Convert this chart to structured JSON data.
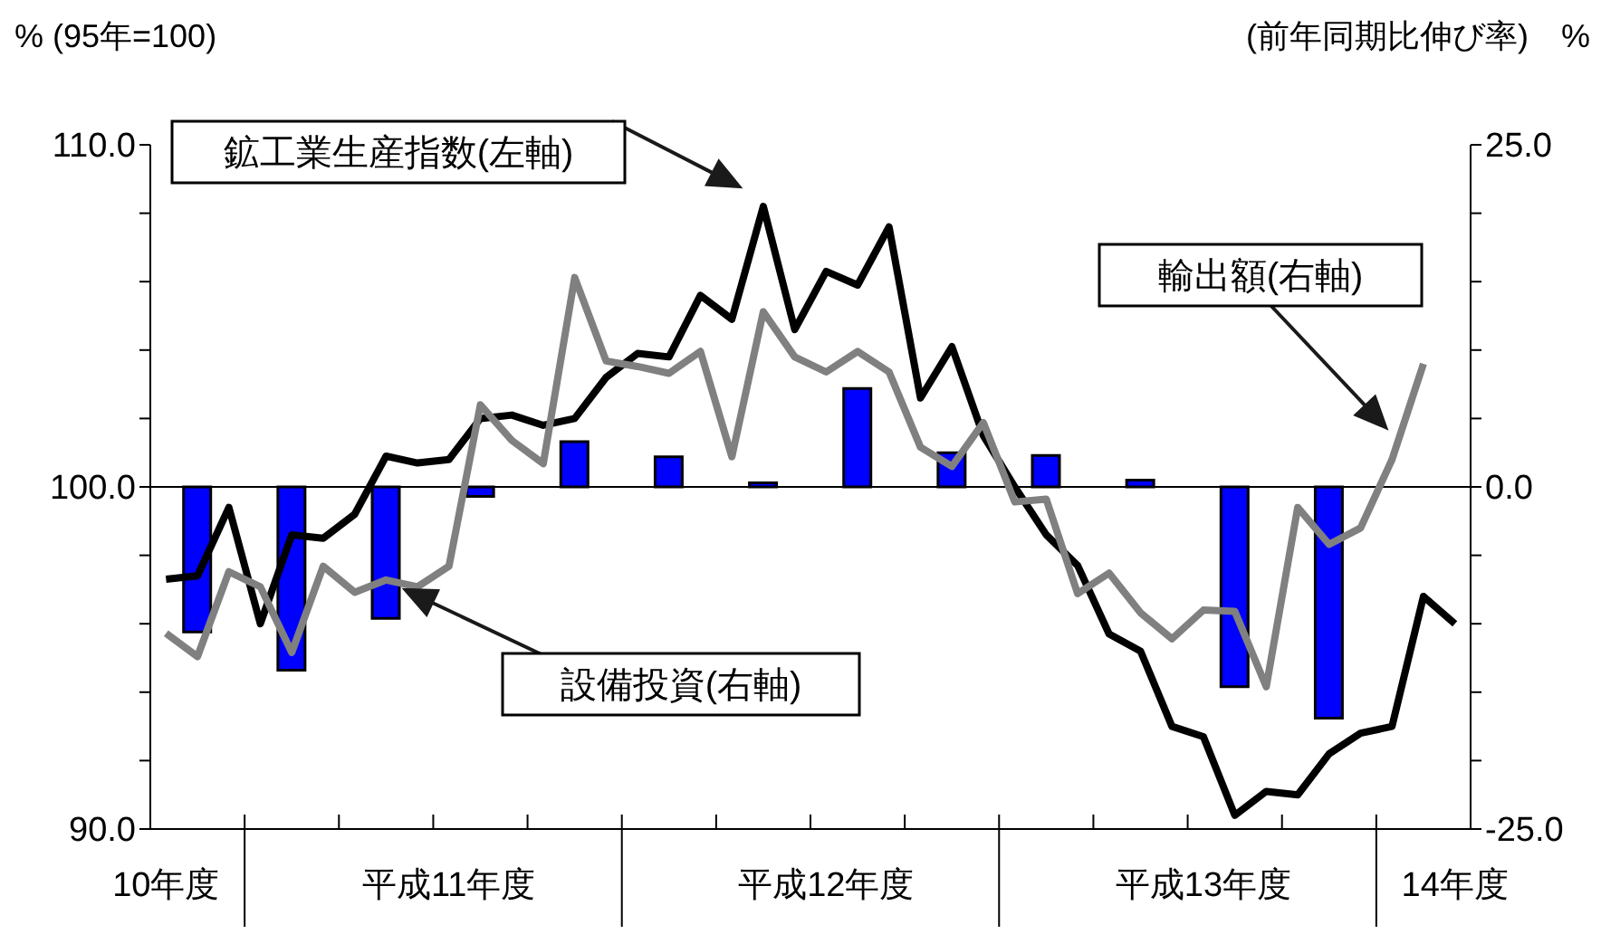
{
  "chart_data": {
    "type": "bar",
    "ylabel": "% (95年=100)",
    "y2label": "(前年同期比伸び率)　%",
    "legend": false,
    "marker": "none",
    "line_style": "solid",
    "categories": [
      "10年度",
      null,
      null,
      null,
      null,
      null,
      null,
      null,
      null,
      "平成11年度",
      null,
      null,
      null,
      null,
      null,
      null,
      null,
      null,
      null,
      null,
      null,
      "平成12年度",
      null,
      null,
      null,
      null,
      null,
      null,
      null,
      null,
      null,
      null,
      null,
      "平成13年度",
      null,
      null,
      null,
      null,
      null,
      null,
      null,
      "14年度"
    ],
    "ylim": [
      90,
      110
    ],
    "yticks": [
      {
        "value": 90,
        "label": "90.0"
      },
      {
        "value": 92,
        "label": null
      },
      {
        "value": 94,
        "label": null
      },
      {
        "value": 96,
        "label": null
      },
      {
        "value": 98,
        "label": null
      },
      {
        "value": 100,
        "label": "100.0"
      },
      {
        "value": 102,
        "label": null
      },
      {
        "value": 104,
        "label": null
      },
      {
        "value": 106,
        "label": null
      },
      {
        "value": 108,
        "label": null
      },
      {
        "value": 110,
        "label": "110.0"
      }
    ],
    "y2lim": [
      -25,
      25
    ],
    "y2ticks": [
      {
        "value": -25,
        "label": "-25.0"
      },
      {
        "value": -20,
        "label": null
      },
      {
        "value": -15,
        "label": null
      },
      {
        "value": -10,
        "label": null
      },
      {
        "value": -5,
        "label": null
      },
      {
        "value": 0,
        "label": "0.0"
      },
      {
        "value": 5,
        "label": null
      },
      {
        "value": 10,
        "label": null
      },
      {
        "value": 15,
        "label": null
      },
      {
        "value": 20,
        "label": null
      },
      {
        "value": 25,
        "label": "25.0"
      }
    ],
    "ref_lines": [
      {
        "axis": "y",
        "value": 100,
        "color": "#000000"
      }
    ],
    "series": [
      {
        "name": "鉱工業生産指数(左軸)",
        "type": "line",
        "color": "#000000",
        "values": [
          97.3,
          97.4,
          99.4,
          96.0,
          98.6,
          98.5,
          99.2,
          100.9,
          100.7,
          100.8,
          102.0,
          102.1,
          101.8,
          102.0,
          103.2,
          103.9,
          103.8,
          105.6,
          104.9,
          108.2,
          104.6,
          106.3,
          105.9,
          107.6,
          102.6,
          104.1,
          101.5,
          100.0,
          98.6,
          97.7,
          95.7,
          95.2,
          93.0,
          92.7,
          90.4,
          91.1,
          91.0,
          92.2,
          92.8,
          93.0,
          96.8,
          96.0
        ]
      },
      {
        "name": "輸出額(右軸)",
        "type": "line",
        "axis": "y2",
        "color": "#808080",
        "values": [
          -10.7,
          -12.4,
          -6.2,
          -7.3,
          -12.1,
          -5.8,
          -7.7,
          -6.8,
          -7.3,
          -5.8,
          6.0,
          3.4,
          1.7,
          15.3,
          9.2,
          8.8,
          8.3,
          9.9,
          2.2,
          12.8,
          9.5,
          8.4,
          9.9,
          8.4,
          2.9,
          1.5,
          4.7,
          -1.1,
          -0.9,
          -7.8,
          -6.3,
          -9.2,
          -11.1,
          -9.0,
          -9.1,
          -14.6,
          -1.5,
          -4.2,
          -3.0,
          2.0,
          9.0,
          null
        ]
      },
      {
        "name": "設備投資(右軸)",
        "axis": "y2",
        "color": "#0000ff",
        "values": [
          null,
          -10.6,
          null,
          null,
          -13.4,
          null,
          null,
          -9.6,
          null,
          null,
          -0.7,
          null,
          null,
          3.3,
          null,
          null,
          2.2,
          null,
          null,
          0.3,
          null,
          null,
          7.2,
          null,
          null,
          2.5,
          null,
          null,
          2.3,
          null,
          null,
          0.5,
          null,
          null,
          -14.6,
          null,
          null,
          -16.9,
          null,
          null,
          null,
          null
        ]
      }
    ]
  }
}
